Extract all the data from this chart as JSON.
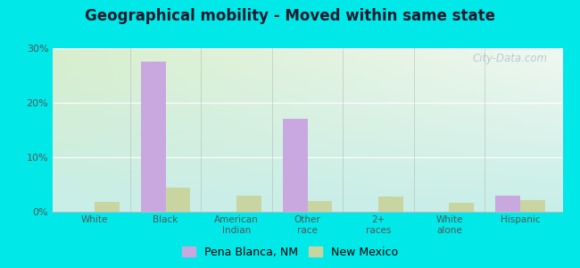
{
  "title": "Geographical mobility - Moved within same state",
  "categories": [
    "White",
    "Black",
    "American\nIndian",
    "Other\nrace",
    "2+\nraces",
    "White\nalone",
    "Hispanic"
  ],
  "pena_blanca": [
    0.0,
    27.5,
    0.0,
    17.0,
    0.0,
    0.0,
    3.0
  ],
  "new_mexico": [
    1.8,
    4.5,
    3.0,
    2.0,
    2.8,
    1.7,
    2.2
  ],
  "pena_blanca_color": "#c9a8e0",
  "new_mexico_color": "#c8d5a0",
  "ylim": [
    0,
    30
  ],
  "yticks": [
    0,
    10,
    20,
    30
  ],
  "ytick_labels": [
    "0%",
    "10%",
    "20%",
    "30%"
  ],
  "bg_top_left": "#d8eecc",
  "bg_top_right": "#f0f8f0",
  "bg_bottom": "#c8eee8",
  "outer_bg": "#00e8e8",
  "bar_width": 0.35,
  "legend_labels": [
    "Pena Blanca, NM",
    "New Mexico"
  ],
  "watermark": "City-Data.com",
  "title_color": "#1a1a2e",
  "tick_color": "#555555"
}
